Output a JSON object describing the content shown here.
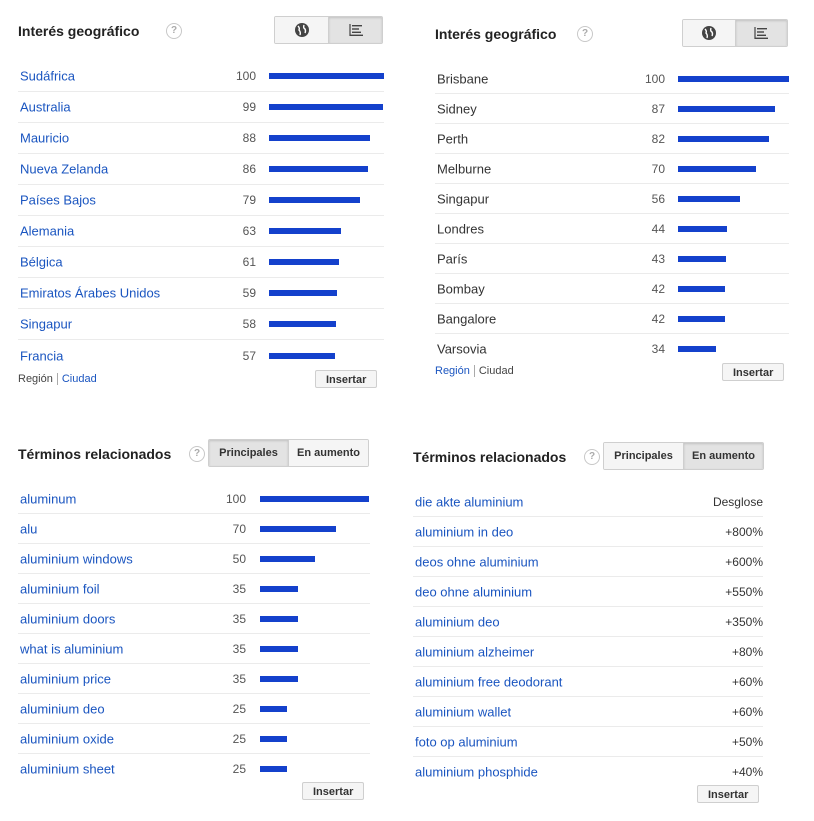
{
  "geo_country": {
    "title": "Interés geográfico",
    "help": "?",
    "rows": [
      {
        "name": "Sudáfrica",
        "value": 100
      },
      {
        "name": "Australia",
        "value": 99
      },
      {
        "name": "Mauricio",
        "value": 88
      },
      {
        "name": "Nueva Zelanda",
        "value": 86
      },
      {
        "name": "Países Bajos",
        "value": 79
      },
      {
        "name": "Alemania",
        "value": 63
      },
      {
        "name": "Bélgica",
        "value": 61
      },
      {
        "name": "Emiratos Árabes Unidos",
        "value": 59
      },
      {
        "name": "Singapur",
        "value": 58
      },
      {
        "name": "Francia",
        "value": 57
      }
    ],
    "footer": {
      "region": "Región",
      "city": "Ciudad"
    },
    "embed": "Insertar",
    "icons": {
      "map": "globe-icon",
      "list": "list-icon"
    }
  },
  "geo_city": {
    "title": "Interés geográfico",
    "help": "?",
    "rows": [
      {
        "name": "Brisbane",
        "value": 100
      },
      {
        "name": "Sidney",
        "value": 87
      },
      {
        "name": "Perth",
        "value": 82
      },
      {
        "name": "Melburne",
        "value": 70
      },
      {
        "name": "Singapur",
        "value": 56
      },
      {
        "name": "Londres",
        "value": 44
      },
      {
        "name": "París",
        "value": 43
      },
      {
        "name": "Bombay",
        "value": 42
      },
      {
        "name": "Bangalore",
        "value": 42
      },
      {
        "name": "Varsovia",
        "value": 34
      }
    ],
    "footer": {
      "region": "Región",
      "city": "Ciudad"
    },
    "embed": "Insertar",
    "icons": {
      "map": "globe-icon",
      "list": "list-icon"
    }
  },
  "related_top": {
    "title": "Términos relacionados",
    "help": "?",
    "tabs": {
      "top": "Principales",
      "rising": "En aumento"
    },
    "rows": [
      {
        "name": "aluminum",
        "value": 100
      },
      {
        "name": "alu",
        "value": 70
      },
      {
        "name": "aluminium windows",
        "value": 50
      },
      {
        "name": "aluminium foil",
        "value": 35
      },
      {
        "name": "aluminium doors",
        "value": 35
      },
      {
        "name": "what is aluminium",
        "value": 35
      },
      {
        "name": "aluminium price",
        "value": 35
      },
      {
        "name": "aluminium deo",
        "value": 25
      },
      {
        "name": "aluminium oxide",
        "value": 25
      },
      {
        "name": "aluminium sheet",
        "value": 25
      }
    ],
    "embed": "Insertar"
  },
  "related_rising": {
    "title": "Términos relacionados",
    "help": "?",
    "tabs": {
      "top": "Principales",
      "rising": "En aumento"
    },
    "rows": [
      {
        "name": "die akte aluminium",
        "pct": "Desglose"
      },
      {
        "name": "aluminium in deo",
        "pct": "+800%"
      },
      {
        "name": "deos ohne aluminium",
        "pct": "+600%"
      },
      {
        "name": "deo ohne aluminium",
        "pct": "+550%"
      },
      {
        "name": "aluminium deo",
        "pct": "+350%"
      },
      {
        "name": "aluminium alzheimer",
        "pct": "+80%"
      },
      {
        "name": "aluminium free deodorant",
        "pct": "+60%"
      },
      {
        "name": "aluminium wallet",
        "pct": "+60%"
      },
      {
        "name": "foto op aluminium",
        "pct": "+50%"
      },
      {
        "name": "aluminium phosphide",
        "pct": "+40%"
      }
    ],
    "embed": "Insertar"
  }
}
